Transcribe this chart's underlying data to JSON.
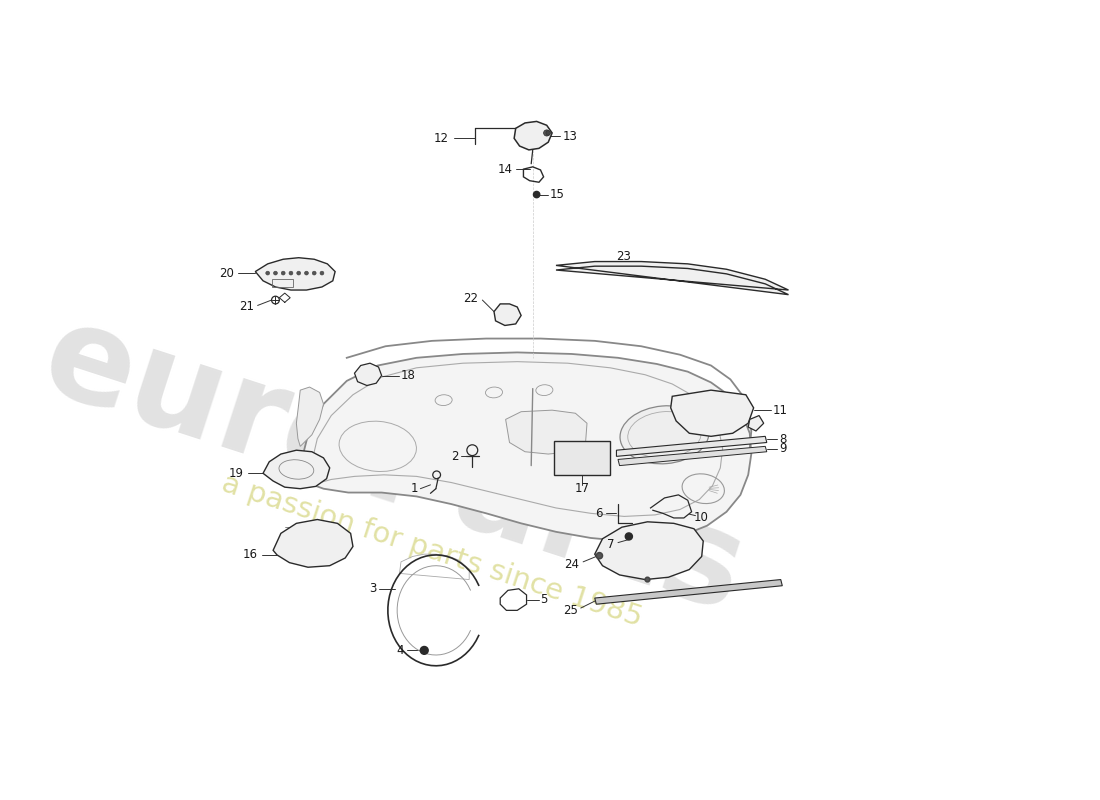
{
  "bg_color": "#ffffff",
  "line_color": "#2a2a2a",
  "label_color": "#1a1a1a",
  "dash_color": "#999999",
  "part_lw": 1.1,
  "leader_lw": 0.7,
  "label_fs": 8.5,
  "wm1_color": "#cbcbcb",
  "wm2_color": "#e0e0a0",
  "fig_w": 11.0,
  "fig_h": 8.0
}
